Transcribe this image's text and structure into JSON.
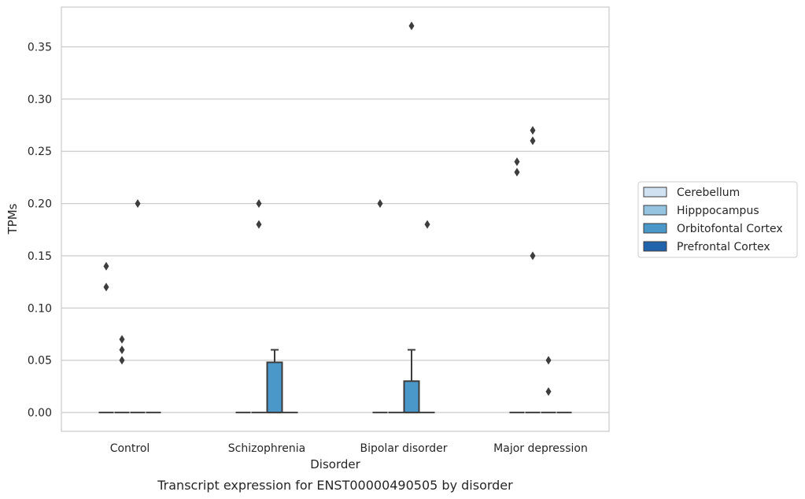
{
  "chart_data": {
    "type": "box",
    "title": "",
    "caption": "Transcript expression for ENST00000490505 by disorder",
    "xlabel": "Disorder",
    "ylabel": "TPMs",
    "ylim": [
      -0.018,
      0.388
    ],
    "yticks": [
      0.0,
      0.05,
      0.1,
      0.15,
      0.2,
      0.25,
      0.3,
      0.35
    ],
    "ytick_labels": [
      "0.00",
      "0.05",
      "0.10",
      "0.15",
      "0.20",
      "0.25",
      "0.30",
      "0.35"
    ],
    "grid": "horizontal",
    "legend_position": "right",
    "categories": [
      "Control",
      "Schizophrenia",
      "Bipolar disorder",
      "Major depression"
    ],
    "series": [
      {
        "name": "Cerebellum",
        "color": "#d0e1f2",
        "boxes": [
          {
            "q1": 0,
            "median": 0,
            "q3": 0,
            "whisker_low": 0,
            "whisker_high": 0,
            "outliers": [
              0.12,
              0.14
            ]
          },
          {
            "q1": 0,
            "median": 0,
            "q3": 0,
            "whisker_low": 0,
            "whisker_high": 0,
            "outliers": []
          },
          {
            "q1": 0,
            "median": 0,
            "q3": 0,
            "whisker_low": 0,
            "whisker_high": 0,
            "outliers": [
              0.2
            ]
          },
          {
            "q1": 0,
            "median": 0,
            "q3": 0,
            "whisker_low": 0,
            "whisker_high": 0,
            "outliers": [
              0.23,
              0.24
            ]
          }
        ]
      },
      {
        "name": "Hipppocampus",
        "color": "#94c4df",
        "boxes": [
          {
            "q1": 0,
            "median": 0,
            "q3": 0,
            "whisker_low": 0,
            "whisker_high": 0,
            "outliers": [
              0.05,
              0.06,
              0.07
            ]
          },
          {
            "q1": 0,
            "median": 0,
            "q3": 0,
            "whisker_low": 0,
            "whisker_high": 0,
            "outliers": [
              0.18,
              0.2
            ]
          },
          {
            "q1": 0,
            "median": 0,
            "q3": 0,
            "whisker_low": 0,
            "whisker_high": 0,
            "outliers": []
          },
          {
            "q1": 0,
            "median": 0,
            "q3": 0,
            "whisker_low": 0,
            "whisker_high": 0,
            "outliers": [
              0.15,
              0.26,
              0.27
            ]
          }
        ]
      },
      {
        "name": "Orbitofontal Cortex",
        "color": "#4a98c9",
        "boxes": [
          {
            "q1": 0,
            "median": 0,
            "q3": 0,
            "whisker_low": 0,
            "whisker_high": 0,
            "outliers": [
              0.2
            ]
          },
          {
            "q1": 0,
            "median": 0,
            "q3": 0.048,
            "whisker_low": 0,
            "whisker_high": 0.06,
            "outliers": []
          },
          {
            "q1": 0,
            "median": 0,
            "q3": 0.03,
            "whisker_low": 0,
            "whisker_high": 0.06,
            "outliers": [
              0.37
            ]
          },
          {
            "q1": 0,
            "median": 0,
            "q3": 0,
            "whisker_low": 0,
            "whisker_high": 0,
            "outliers": [
              0.02,
              0.05
            ]
          }
        ]
      },
      {
        "name": "Prefrontal Cortex",
        "color": "#2164ab",
        "boxes": [
          {
            "q1": 0,
            "median": 0,
            "q3": 0,
            "whisker_low": 0,
            "whisker_high": 0,
            "outliers": []
          },
          {
            "q1": 0,
            "median": 0,
            "q3": 0,
            "whisker_low": 0,
            "whisker_high": 0,
            "outliers": []
          },
          {
            "q1": 0,
            "median": 0,
            "q3": 0,
            "whisker_low": 0,
            "whisker_high": 0,
            "outliers": [
              0.18
            ]
          },
          {
            "q1": 0,
            "median": 0,
            "q3": 0,
            "whisker_low": 0,
            "whisker_high": 0,
            "outliers": []
          }
        ]
      }
    ]
  }
}
